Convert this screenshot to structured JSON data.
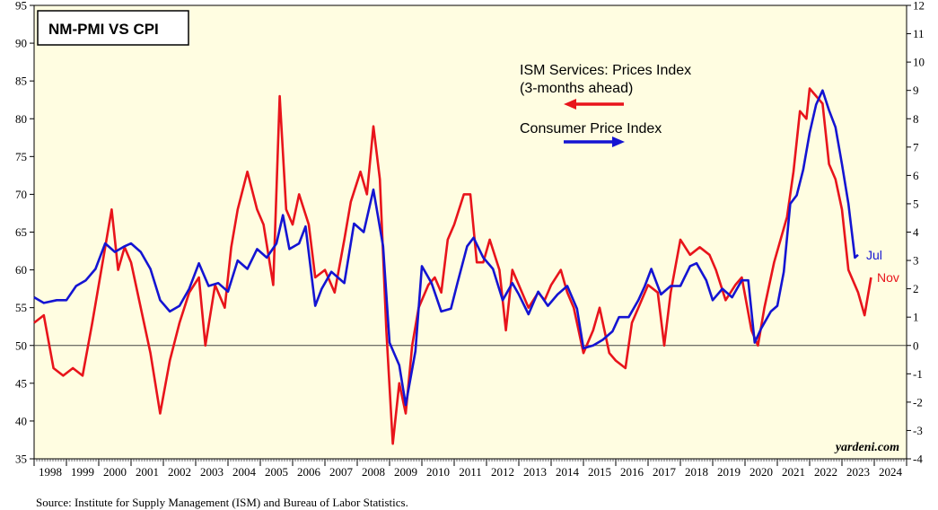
{
  "chart_data": {
    "type": "line",
    "title": "NM-PMI VS CPI",
    "background": "#fffde1",
    "left_axis": {
      "min": 35,
      "max": 95,
      "step": 5
    },
    "right_axis": {
      "min": -4,
      "max": 12,
      "step": 1
    },
    "years": [
      "1998",
      "1999",
      "2000",
      "2001",
      "2002",
      "2003",
      "2004",
      "2005",
      "2006",
      "2007",
      "2008",
      "2009",
      "2010",
      "2011",
      "2012",
      "2013",
      "2014",
      "2015",
      "2016",
      "2017",
      "2018",
      "2019",
      "2020",
      "2021",
      "2022",
      "2023",
      "2024"
    ],
    "x_range": [
      1998.0,
      2025.0
    ],
    "baseline": {
      "value": 50,
      "axis": "left"
    },
    "series": [
      {
        "name": "ISM Services: Prices Index (3-months ahead)",
        "axis": "left",
        "color": "#e8141b",
        "end_label": "Nov",
        "points": [
          [
            1998.0,
            53
          ],
          [
            1998.3,
            54
          ],
          [
            1998.6,
            47
          ],
          [
            1998.9,
            46
          ],
          [
            1999.2,
            47
          ],
          [
            1999.5,
            46
          ],
          [
            1999.8,
            53
          ],
          [
            2000.0,
            58
          ],
          [
            2000.2,
            63
          ],
          [
            2000.4,
            68
          ],
          [
            2000.6,
            60
          ],
          [
            2000.8,
            63
          ],
          [
            2001.0,
            61
          ],
          [
            2001.3,
            55
          ],
          [
            2001.6,
            49
          ],
          [
            2001.9,
            41
          ],
          [
            2002.2,
            48
          ],
          [
            2002.5,
            53
          ],
          [
            2002.8,
            57
          ],
          [
            2003.1,
            59
          ],
          [
            2003.3,
            50
          ],
          [
            2003.6,
            58
          ],
          [
            2003.9,
            55
          ],
          [
            2004.1,
            63
          ],
          [
            2004.3,
            68
          ],
          [
            2004.6,
            73
          ],
          [
            2004.9,
            68
          ],
          [
            2005.1,
            66
          ],
          [
            2005.4,
            58
          ],
          [
            2005.6,
            83
          ],
          [
            2005.8,
            68
          ],
          [
            2006.0,
            66
          ],
          [
            2006.2,
            70
          ],
          [
            2006.5,
            66
          ],
          [
            2006.7,
            59
          ],
          [
            2007.0,
            60
          ],
          [
            2007.3,
            57
          ],
          [
            2007.6,
            64
          ],
          [
            2007.8,
            69
          ],
          [
            2008.1,
            73
          ],
          [
            2008.3,
            70
          ],
          [
            2008.5,
            79
          ],
          [
            2008.7,
            72
          ],
          [
            2008.9,
            52
          ],
          [
            2009.1,
            37
          ],
          [
            2009.3,
            45
          ],
          [
            2009.5,
            41
          ],
          [
            2009.7,
            50
          ],
          [
            2009.9,
            55
          ],
          [
            2010.2,
            58
          ],
          [
            2010.4,
            59
          ],
          [
            2010.6,
            57
          ],
          [
            2010.8,
            64
          ],
          [
            2011.0,
            66
          ],
          [
            2011.3,
            70
          ],
          [
            2011.5,
            70
          ],
          [
            2011.7,
            61
          ],
          [
            2011.9,
            61
          ],
          [
            2012.1,
            64
          ],
          [
            2012.4,
            60
          ],
          [
            2012.6,
            52
          ],
          [
            2012.8,
            60
          ],
          [
            2013.0,
            58
          ],
          [
            2013.3,
            55
          ],
          [
            2013.6,
            57
          ],
          [
            2013.8,
            56
          ],
          [
            2014.0,
            58
          ],
          [
            2014.3,
            60
          ],
          [
            2014.5,
            57
          ],
          [
            2014.7,
            55
          ],
          [
            2015.0,
            49
          ],
          [
            2015.3,
            52
          ],
          [
            2015.5,
            55
          ],
          [
            2015.8,
            49
          ],
          [
            2016.0,
            48
          ],
          [
            2016.3,
            47
          ],
          [
            2016.5,
            53
          ],
          [
            2016.7,
            55
          ],
          [
            2017.0,
            58
          ],
          [
            2017.3,
            57
          ],
          [
            2017.5,
            50
          ],
          [
            2017.7,
            57
          ],
          [
            2018.0,
            64
          ],
          [
            2018.3,
            62
          ],
          [
            2018.6,
            63
          ],
          [
            2018.9,
            62
          ],
          [
            2019.1,
            60
          ],
          [
            2019.4,
            56
          ],
          [
            2019.7,
            58
          ],
          [
            2019.9,
            59
          ],
          [
            2020.2,
            52
          ],
          [
            2020.4,
            50
          ],
          [
            2020.6,
            55
          ],
          [
            2020.9,
            61
          ],
          [
            2021.1,
            64
          ],
          [
            2021.3,
            67
          ],
          [
            2021.5,
            73
          ],
          [
            2021.7,
            81
          ],
          [
            2021.9,
            80
          ],
          [
            2022.0,
            84
          ],
          [
            2022.2,
            83
          ],
          [
            2022.4,
            82
          ],
          [
            2022.6,
            74
          ],
          [
            2022.8,
            72
          ],
          [
            2023.0,
            68
          ],
          [
            2023.2,
            60
          ],
          [
            2023.5,
            57
          ],
          [
            2023.7,
            54
          ],
          [
            2023.9,
            59
          ]
        ]
      },
      {
        "name": "Consumer Price Index",
        "axis": "right",
        "color": "#1414d2",
        "end_label": "Jul",
        "points": [
          [
            1998.0,
            1.7
          ],
          [
            1998.3,
            1.5
          ],
          [
            1998.7,
            1.6
          ],
          [
            1999.0,
            1.6
          ],
          [
            1999.3,
            2.1
          ],
          [
            1999.6,
            2.3
          ],
          [
            1999.9,
            2.7
          ],
          [
            2000.2,
            3.6
          ],
          [
            2000.5,
            3.3
          ],
          [
            2000.8,
            3.5
          ],
          [
            2001.0,
            3.6
          ],
          [
            2001.3,
            3.3
          ],
          [
            2001.6,
            2.7
          ],
          [
            2001.9,
            1.6
          ],
          [
            2002.2,
            1.2
          ],
          [
            2002.5,
            1.4
          ],
          [
            2002.8,
            2.0
          ],
          [
            2003.1,
            2.9
          ],
          [
            2003.4,
            2.1
          ],
          [
            2003.7,
            2.2
          ],
          [
            2004.0,
            1.9
          ],
          [
            2004.3,
            3.0
          ],
          [
            2004.6,
            2.7
          ],
          [
            2004.9,
            3.4
          ],
          [
            2005.2,
            3.1
          ],
          [
            2005.5,
            3.6
          ],
          [
            2005.7,
            4.6
          ],
          [
            2005.9,
            3.4
          ],
          [
            2006.2,
            3.6
          ],
          [
            2006.4,
            4.2
          ],
          [
            2006.7,
            1.4
          ],
          [
            2006.9,
            2.0
          ],
          [
            2007.2,
            2.6
          ],
          [
            2007.6,
            2.2
          ],
          [
            2007.9,
            4.3
          ],
          [
            2008.2,
            4.0
          ],
          [
            2008.5,
            5.5
          ],
          [
            2008.8,
            3.5
          ],
          [
            2009.0,
            0.1
          ],
          [
            2009.3,
            -0.7
          ],
          [
            2009.5,
            -2.1
          ],
          [
            2009.8,
            -0.2
          ],
          [
            2010.0,
            2.8
          ],
          [
            2010.3,
            2.2
          ],
          [
            2010.6,
            1.2
          ],
          [
            2010.9,
            1.3
          ],
          [
            2011.1,
            2.2
          ],
          [
            2011.4,
            3.5
          ],
          [
            2011.6,
            3.8
          ],
          [
            2011.9,
            3.1
          ],
          [
            2012.2,
            2.7
          ],
          [
            2012.5,
            1.6
          ],
          [
            2012.8,
            2.2
          ],
          [
            2013.0,
            1.8
          ],
          [
            2013.3,
            1.1
          ],
          [
            2013.6,
            1.9
          ],
          [
            2013.9,
            1.4
          ],
          [
            2014.2,
            1.8
          ],
          [
            2014.5,
            2.1
          ],
          [
            2014.8,
            1.3
          ],
          [
            2015.0,
            -0.1
          ],
          [
            2015.3,
            0.0
          ],
          [
            2015.6,
            0.2
          ],
          [
            2015.9,
            0.5
          ],
          [
            2016.1,
            1.0
          ],
          [
            2016.4,
            1.0
          ],
          [
            2016.7,
            1.6
          ],
          [
            2016.9,
            2.1
          ],
          [
            2017.1,
            2.7
          ],
          [
            2017.4,
            1.8
          ],
          [
            2017.7,
            2.1
          ],
          [
            2018.0,
            2.1
          ],
          [
            2018.3,
            2.8
          ],
          [
            2018.5,
            2.9
          ],
          [
            2018.8,
            2.3
          ],
          [
            2019.0,
            1.6
          ],
          [
            2019.3,
            2.0
          ],
          [
            2019.6,
            1.7
          ],
          [
            2019.9,
            2.3
          ],
          [
            2020.1,
            2.3
          ],
          [
            2020.3,
            0.1
          ],
          [
            2020.5,
            0.6
          ],
          [
            2020.8,
            1.2
          ],
          [
            2021.0,
            1.4
          ],
          [
            2021.2,
            2.6
          ],
          [
            2021.4,
            5.0
          ],
          [
            2021.6,
            5.3
          ],
          [
            2021.8,
            6.2
          ],
          [
            2022.0,
            7.5
          ],
          [
            2022.2,
            8.5
          ],
          [
            2022.4,
            9.0
          ],
          [
            2022.6,
            8.3
          ],
          [
            2022.8,
            7.7
          ],
          [
            2023.0,
            6.4
          ],
          [
            2023.2,
            5.0
          ],
          [
            2023.4,
            3.1
          ],
          [
            2023.5,
            3.2
          ]
        ]
      }
    ],
    "legend": {
      "ism_line1": "ISM Services: Prices Index",
      "ism_line2": "(3-months ahead)",
      "cpi": "Consumer Price Index"
    },
    "watermark": "yardeni.com",
    "source": "Source: Institute for Supply Management (ISM) and Bureau of Labor Statistics."
  }
}
